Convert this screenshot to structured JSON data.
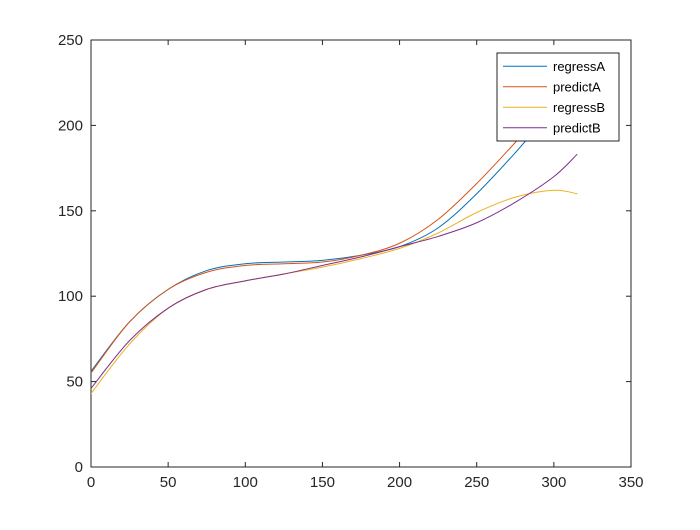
{
  "chart_data": {
    "type": "line",
    "title": "",
    "xlabel": "",
    "ylabel": "",
    "xlim": [
      0,
      350
    ],
    "ylim": [
      0,
      250
    ],
    "x_ticks": [
      0,
      50,
      100,
      150,
      200,
      250,
      300,
      350
    ],
    "y_ticks": [
      0,
      50,
      100,
      150,
      200,
      250
    ],
    "x_tick_labels": [
      "0",
      "50",
      "100",
      "150",
      "200",
      "250",
      "300",
      "350"
    ],
    "y_tick_labels": [
      "0",
      "50",
      "100",
      "150",
      "200",
      "250"
    ],
    "grid": false,
    "legend_position": "top-right",
    "series": [
      {
        "name": "regressA",
        "color": "#0072BD",
        "x": [
          0,
          25,
          50,
          75,
          100,
          125,
          150,
          175,
          200,
          225,
          250,
          275,
          290
        ],
        "y": [
          56,
          85,
          104,
          115,
          119,
          120,
          121,
          124,
          129,
          140,
          160,
          184,
          200
        ]
      },
      {
        "name": "predictA",
        "color": "#D95319",
        "x": [
          0,
          25,
          50,
          75,
          100,
          125,
          150,
          175,
          200,
          225,
          250,
          275,
          285
        ],
        "y": [
          55,
          85,
          104,
          114,
          118,
          119,
          120,
          124,
          131,
          145,
          166,
          190,
          200
        ]
      },
      {
        "name": "regressB",
        "color": "#EDB120",
        "x": [
          0,
          25,
          50,
          75,
          100,
          125,
          150,
          175,
          200,
          225,
          250,
          275,
          300,
          315
        ],
        "y": [
          43,
          72,
          93,
          104,
          109,
          113,
          117,
          122,
          128,
          137,
          149,
          158,
          162,
          160
        ]
      },
      {
        "name": "predictB",
        "color": "#7E2F8E",
        "x": [
          0,
          25,
          50,
          75,
          100,
          125,
          150,
          175,
          200,
          225,
          250,
          275,
          300,
          315
        ],
        "y": [
          46,
          74,
          93,
          104,
          109,
          113,
          118,
          123,
          129,
          135,
          143,
          155,
          170,
          183
        ]
      }
    ]
  }
}
